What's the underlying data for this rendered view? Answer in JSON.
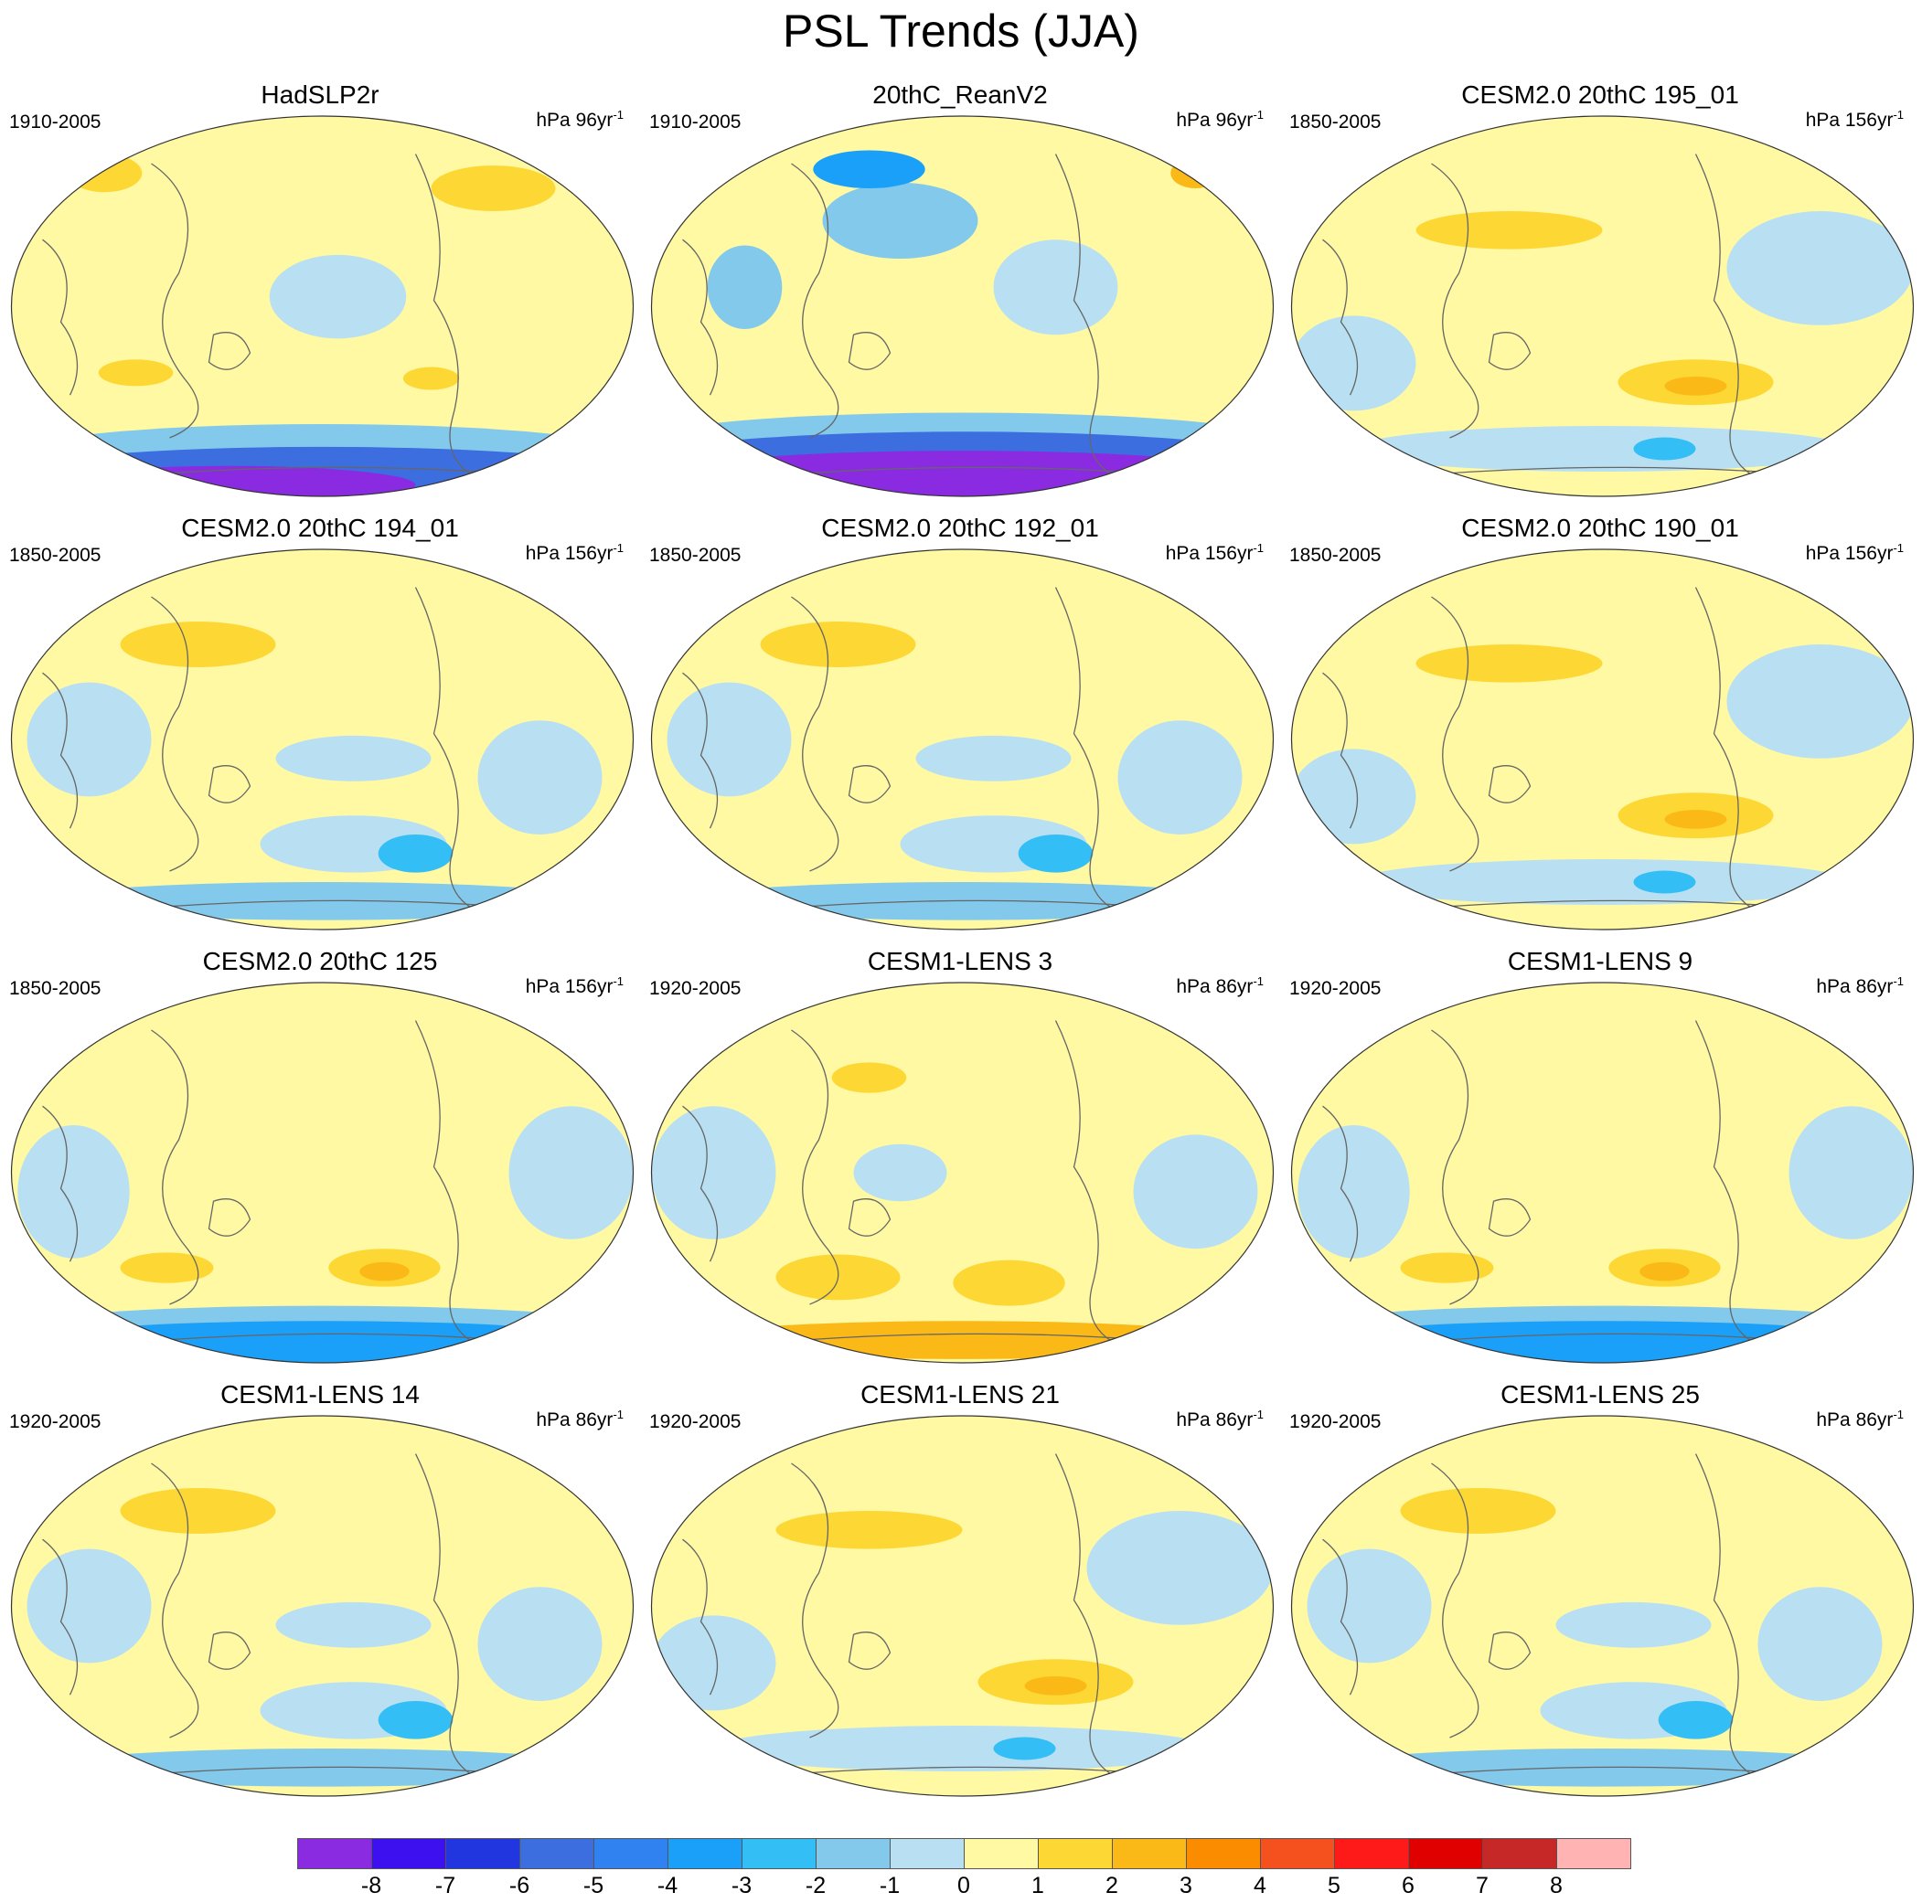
{
  "title": "PSL Trends (JJA)",
  "panels": [
    {
      "title": "HadSLP2r",
      "period": "1910-2005",
      "units": "hPa 96yr",
      "units_sup": "-1",
      "scheme": "obsA"
    },
    {
      "title": "20thC_ReanV2",
      "period": "1910-2005",
      "units": "hPa 96yr",
      "units_sup": "-1",
      "scheme": "obsB"
    },
    {
      "title": "CESM2.0 20thC 195_01",
      "period": "1850-2005",
      "units": "hPa 156yr",
      "units_sup": "-1",
      "scheme": "modelPos"
    },
    {
      "title": "CESM2.0 20thC 194_01",
      "period": "1850-2005",
      "units": "hPa 156yr",
      "units_sup": "-1",
      "scheme": "modelMixed"
    },
    {
      "title": "CESM2.0 20thC 192_01",
      "period": "1850-2005",
      "units": "hPa 156yr",
      "units_sup": "-1",
      "scheme": "modelMixed"
    },
    {
      "title": "CESM2.0 20thC 190_01",
      "period": "1850-2005",
      "units": "hPa 156yr",
      "units_sup": "-1",
      "scheme": "modelPos"
    },
    {
      "title": "CESM2.0 20thC 125",
      "period": "1850-2005",
      "units": "hPa 156yr",
      "units_sup": "-1",
      "scheme": "modelNegS"
    },
    {
      "title": "CESM1-LENS 3",
      "period": "1920-2005",
      "units": "hPa 86yr",
      "units_sup": "-1",
      "scheme": "modelPosS"
    },
    {
      "title": "CESM1-LENS 9",
      "period": "1920-2005",
      "units": "hPa 86yr",
      "units_sup": "-1",
      "scheme": "modelNegS"
    },
    {
      "title": "CESM1-LENS 14",
      "period": "1920-2005",
      "units": "hPa 86yr",
      "units_sup": "-1",
      "scheme": "modelMixed"
    },
    {
      "title": "CESM1-LENS 21",
      "period": "1920-2005",
      "units": "hPa 86yr",
      "units_sup": "-1",
      "scheme": "modelPos"
    },
    {
      "title": "CESM1-LENS 25",
      "period": "1920-2005",
      "units": "hPa 86yr",
      "units_sup": "-1",
      "scheme": "modelMixed"
    }
  ],
  "chart_data": {
    "type": "heatmap",
    "title": "PSL Trends (JJA)",
    "projection": "global map (Winkel-tripel style ellipse), Pacific-centred",
    "colorbar": {
      "levels": [
        -8,
        -7,
        -6,
        -5,
        -4,
        -3,
        -2,
        -1,
        0,
        1,
        2,
        3,
        4,
        5,
        6,
        7,
        8
      ],
      "tick_labels": [
        "-8",
        "-7",
        "-6",
        "-5",
        "-4",
        "-3",
        "-2",
        "-1",
        "0",
        "1",
        "2",
        "3",
        "4",
        "5",
        "6",
        "7",
        "8"
      ],
      "colors": [
        "#8a2be2",
        "#3d10f0",
        "#2236e0",
        "#3c6ee0",
        "#2f82f0",
        "#1aa0f8",
        "#33bff5",
        "#82c9ec",
        "#b9e0f2",
        "#fff9a3",
        "#fdd835",
        "#fbb917",
        "#fb8c00",
        "#f4511e",
        "#ff1a1a",
        "#e00000",
        "#c62828",
        "#ffb3b3"
      ]
    }
  }
}
